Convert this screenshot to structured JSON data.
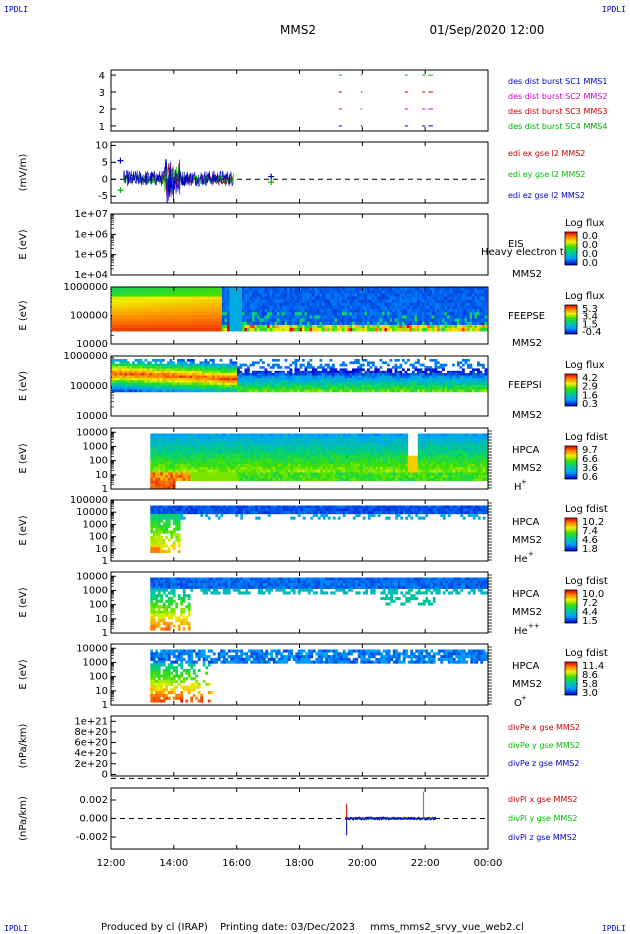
{
  "header": {
    "corner_left": "IPDLI",
    "corner_right": "IPDLI",
    "title": "MMS2",
    "datetime": "01/Sep/2020 12:00"
  },
  "footer": {
    "corner_left": "IPDLI",
    "corner_right": "IPDLI",
    "produced_by": "Produced by cl (IRAP)",
    "printing_date": "Printing date: 03/Dec/2023",
    "script_name": "mms_mms2_srvy_vue_web2.cl"
  },
  "time_axis": {
    "ticks": [
      "12:00",
      "14:00",
      "16:00",
      "18:00",
      "20:00",
      "22:00",
      "00:00"
    ],
    "values_hours": [
      12,
      14,
      16,
      18,
      20,
      22,
      24
    ],
    "range_hours": [
      12,
      24
    ]
  },
  "colors": {
    "mms1": "#0000cc",
    "mms2": "#cc00cc",
    "mms3": "#cc0000",
    "mms4": "#00aa00",
    "x": "#cc0000",
    "y": "#00bb00",
    "z": "#0000cc"
  },
  "chart_data": [
    {
      "id": "burst",
      "type": "scatter",
      "ylabel": "",
      "yticks": [
        "1",
        "2",
        "3",
        "4"
      ],
      "ylim": [
        0.7,
        4.3
      ],
      "legend": [
        {
          "text": "des dist burst SC1 MMS1",
          "color": "#0000cc"
        },
        {
          "text": "des dist burst SC2 MMS2",
          "color": "#cc00cc"
        },
        {
          "text": "des dist burst SC3 MMS3",
          "color": "#cc0000"
        },
        {
          "text": "des dist burst SC4 MMS4",
          "color": "#00aa00"
        }
      ],
      "series": [
        {
          "name": "des dist burst SC1 MMS1",
          "y": 1,
          "color": "#0000cc",
          "intervals_hours": [
            [
              19.25,
              19.35
            ],
            [
              19.95,
              20.0
            ],
            [
              21.35,
              21.45
            ],
            [
              21.9,
              22.0
            ],
            [
              22.1,
              22.25
            ]
          ]
        },
        {
          "name": "des dist burst SC2 MMS2",
          "y": 2,
          "color": "#cc00cc",
          "intervals_hours": [
            [
              19.25,
              19.35
            ],
            [
              19.95,
              20.0
            ],
            [
              21.35,
              21.45
            ],
            [
              21.9,
              22.0
            ],
            [
              22.1,
              22.25
            ]
          ]
        },
        {
          "name": "des dist burst SC3 MMS3",
          "y": 3,
          "color": "#cc0000",
          "intervals_hours": [
            [
              19.25,
              19.35
            ],
            [
              19.95,
              20.0
            ],
            [
              21.35,
              21.45
            ],
            [
              21.9,
              22.0
            ],
            [
              22.1,
              22.25
            ]
          ]
        },
        {
          "name": "des dist burst SC4 MMS4",
          "y": 4,
          "color": "#00aa00",
          "intervals_hours": [
            [
              19.25,
              19.35
            ],
            [
              19.95,
              20.0
            ],
            [
              21.35,
              21.45
            ],
            [
              21.9,
              22.0
            ],
            [
              22.1,
              22.25
            ]
          ]
        }
      ]
    },
    {
      "id": "edi",
      "type": "line",
      "ylabel": "(mV/m)",
      "yticks": [
        "-5",
        "0",
        "5",
        "10"
      ],
      "ytick_values": [
        -5,
        0,
        5,
        10
      ],
      "ylim": [
        -7,
        11
      ],
      "zero_line": true,
      "legend": [
        {
          "text": "edi ex gse l2 MMS2",
          "color": "#cc0000"
        },
        {
          "text": "edi ey gse l2 MMS2",
          "color": "#00bb00"
        },
        {
          "text": "edi ez gse l2 MMS2",
          "color": "#0000cc"
        }
      ],
      "activity_hours": [
        12.4,
        15.9
      ],
      "outliers": [
        {
          "x": 12.3,
          "y": 5.5,
          "color": "#0000cc"
        },
        {
          "x": 12.3,
          "y": -3.2,
          "color": "#00bb00"
        },
        {
          "x": 17.1,
          "y": 0.8,
          "color": "#0000cc"
        },
        {
          "x": 17.1,
          "y": -0.8,
          "color": "#00bb00"
        }
      ]
    },
    {
      "id": "eis",
      "type": "heatmap",
      "ylabel": "E (eV)",
      "yticks": [
        "1e+04",
        "1e+05",
        "1e+06",
        "1e+07"
      ],
      "ytick_log": [
        4,
        5,
        6,
        7
      ],
      "ylim_log": [
        4,
        7
      ],
      "instrument": "EIS",
      "spacecraft": "MMS2",
      "overlay_text": "Heavy electron to",
      "colorbar_title": "Log flux",
      "colorbar_ticks": [
        "0.0",
        "0.0",
        "0.0",
        "0.0"
      ],
      "filled": false
    },
    {
      "id": "feepse",
      "type": "heatmap",
      "ylabel": "E (eV)",
      "yticks": [
        "10000",
        "100000",
        "1000000"
      ],
      "ytick_log": [
        4,
        5,
        6
      ],
      "ylim_log": [
        4,
        6
      ],
      "instrument": "FEEPSE",
      "spacecraft": "MMS2",
      "colorbar_title": "Log flux",
      "colorbar_ticks": [
        "5.3",
        "3.4",
        "1.5",
        "-0.4"
      ],
      "data_hours": [
        12,
        24
      ],
      "data_energy_log": [
        4.45,
        6.0
      ]
    },
    {
      "id": "feepsi",
      "type": "heatmap",
      "ylabel": "E (eV)",
      "yticks": [
        "10000",
        "100000",
        "1000000"
      ],
      "ytick_log": [
        4,
        5,
        6
      ],
      "ylim_log": [
        4,
        6
      ],
      "instrument": "FEEPSI",
      "spacecraft": "MMS2",
      "colorbar_title": "Log flux",
      "colorbar_ticks": [
        "4.2",
        "2.9",
        "1.6",
        "0.3"
      ],
      "data_hours": [
        12,
        24
      ],
      "data_energy_log": [
        4.8,
        5.9
      ]
    },
    {
      "id": "hpca_h",
      "type": "heatmap",
      "ylabel": "E (eV)",
      "yticks": [
        "1",
        "10",
        "100",
        "1000",
        "10000"
      ],
      "ytick_log": [
        0,
        1,
        2,
        3,
        4
      ],
      "ylim_log": [
        0,
        4.3
      ],
      "instrument": "HPCA",
      "spacecraft": "MMS2",
      "species": "H",
      "species_sup": "+",
      "colorbar_title": "Log fdist",
      "colorbar_ticks": [
        "9.7",
        "6.6",
        "3.6",
        "0.6"
      ],
      "data_hours": [
        13.25,
        24
      ]
    },
    {
      "id": "hpca_he",
      "type": "heatmap",
      "ylabel": "E (eV)",
      "yticks": [
        "1",
        "10",
        "100",
        "1000",
        "10000",
        "100000"
      ],
      "ytick_log": [
        0,
        1,
        2,
        3,
        4,
        5
      ],
      "ylim_log": [
        0,
        5
      ],
      "instrument": "HPCA",
      "spacecraft": "MMS2",
      "species": "He",
      "species_sup": "+",
      "colorbar_title": "Log fdist",
      "colorbar_ticks": [
        "10.2",
        "7.4",
        "4.6",
        "1.8"
      ],
      "data_hours": [
        13.25,
        24
      ]
    },
    {
      "id": "hpca_hepp",
      "type": "heatmap",
      "ylabel": "E (eV)",
      "yticks": [
        "1",
        "10",
        "100",
        "1000",
        "10000"
      ],
      "ytick_log": [
        0,
        1,
        2,
        3,
        4
      ],
      "ylim_log": [
        0,
        4.3
      ],
      "instrument": "HPCA",
      "spacecraft": "MMS2",
      "species": "He",
      "species_sup": "++",
      "colorbar_title": "Log fdist",
      "colorbar_ticks": [
        "10.0",
        "7.2",
        "4.4",
        "1.5"
      ],
      "data_hours": [
        13.25,
        24
      ]
    },
    {
      "id": "hpca_o",
      "type": "heatmap",
      "ylabel": "E (eV)",
      "yticks": [
        "1",
        "10",
        "100",
        "1000",
        "10000"
      ],
      "ytick_log": [
        0,
        1,
        2,
        3,
        4
      ],
      "ylim_log": [
        0,
        4.3
      ],
      "instrument": "HPCA",
      "spacecraft": "MMS2",
      "species": "O",
      "species_sup": "+",
      "colorbar_title": "Log fdist",
      "colorbar_ticks": [
        "11.4",
        "8.6",
        "5.8",
        "3.0"
      ],
      "data_hours": [
        13.25,
        24
      ]
    },
    {
      "id": "divpe",
      "type": "line",
      "ylabel": "(nPa/km)",
      "yticks": [
        "0",
        "2e+20",
        "4e+20",
        "6e+20",
        "8e+20",
        "1e+21"
      ],
      "ytick_values": [
        0,
        2e+20,
        4e+20,
        6e+20,
        8e+20,
        1e+21
      ],
      "ylim": [
        -3e+19,
        1.1e+21
      ],
      "zero_line": true,
      "legend": [
        {
          "text": "divPe x gse MMS2",
          "color": "#cc0000"
        },
        {
          "text": "divPe y gse MMS2",
          "color": "#00bb00"
        },
        {
          "text": "divPe z gse MMS2",
          "color": "#0000cc"
        }
      ]
    },
    {
      "id": "divpi",
      "type": "line",
      "ylabel": "(nPa/km)",
      "yticks": [
        "-0.002",
        "0.000",
        "0.002"
      ],
      "ytick_values": [
        -0.002,
        0,
        0.002
      ],
      "ylim": [
        -0.0033,
        0.0033
      ],
      "zero_line": true,
      "legend": [
        {
          "text": "divPi x gse MMS2",
          "color": "#cc0000"
        },
        {
          "text": "divPi y gse MMS2",
          "color": "#00bb00"
        },
        {
          "text": "divPi z gse MMS2",
          "color": "#0000cc"
        }
      ],
      "activity_hours": [
        19.45,
        22.35
      ],
      "spikes": [
        {
          "x": 19.5,
          "y": 0.0016,
          "color": "#cc0000"
        },
        {
          "x": 19.5,
          "y": -0.0018,
          "color": "#0000cc"
        },
        {
          "x": 21.95,
          "y": 0.0029,
          "color": "#00bb00"
        }
      ]
    }
  ]
}
